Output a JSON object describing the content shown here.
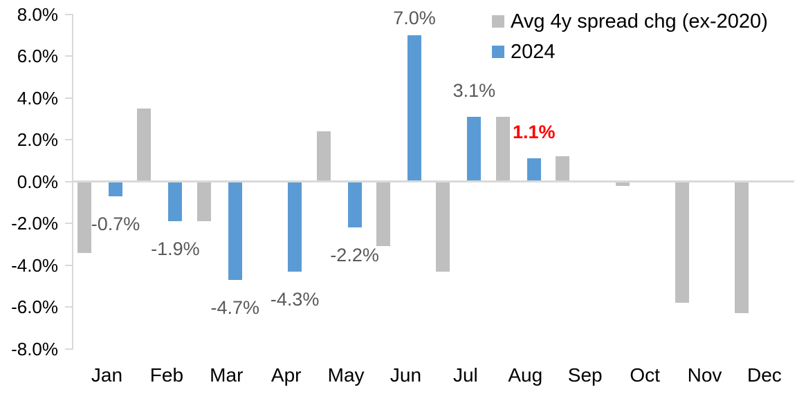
{
  "chart_data": {
    "type": "bar",
    "title": "",
    "xlabel": "",
    "ylabel": "",
    "categories": [
      "Jan",
      "Feb",
      "Mar",
      "Apr",
      "May",
      "Jun",
      "Jul",
      "Aug",
      "Sep",
      "Oct",
      "Nov",
      "Dec"
    ],
    "series": [
      {
        "name": "Avg 4y spread chg (ex-2020)",
        "color": "#BFBFBF",
        "values": [
          -3.4,
          3.5,
          -1.9,
          0.0,
          2.4,
          -3.1,
          -4.3,
          3.1,
          1.2,
          -0.2,
          -5.8,
          -6.3
        ]
      },
      {
        "name": "2024",
        "color": "#5B9BD5",
        "values": [
          -0.7,
          -1.9,
          -4.7,
          -4.3,
          -2.2,
          7.0,
          3.1,
          1.1,
          null,
          null,
          null,
          null
        ]
      }
    ],
    "data_labels": [
      {
        "category": "Jan",
        "text": "-0.7%",
        "color": "#595959",
        "bold": false
      },
      {
        "category": "Feb",
        "text": "-1.9%",
        "color": "#595959",
        "bold": false
      },
      {
        "category": "Mar",
        "text": "-4.7%",
        "color": "#595959",
        "bold": false
      },
      {
        "category": "Apr",
        "text": "-4.3%",
        "color": "#595959",
        "bold": false
      },
      {
        "category": "May",
        "text": "-2.2%",
        "color": "#595959",
        "bold": false
      },
      {
        "category": "Jun",
        "text": "7.0%",
        "color": "#595959",
        "bold": false
      },
      {
        "category": "Jul",
        "text": "3.1%",
        "color": "#595959",
        "bold": false
      },
      {
        "category": "Aug",
        "text": "1.1%",
        "color": "#FF0000",
        "bold": true
      }
    ],
    "y_axis": {
      "min": -8,
      "max": 8,
      "tick_step": 2,
      "tick_labels": [
        "8.0%",
        "6.0%",
        "4.0%",
        "2.0%",
        "0.0%",
        "-2.0%",
        "-4.0%",
        "-6.0%",
        "-8.0%"
      ],
      "tick_values": [
        8,
        6,
        4,
        2,
        0,
        -2,
        -4,
        -6,
        -8
      ]
    },
    "legend": {
      "position": "top-right",
      "entries": [
        {
          "label": "Avg 4y spread chg (ex-2020)",
          "color": "#BFBFBF"
        },
        {
          "label": "2024",
          "color": "#5B9BD5"
        }
      ]
    },
    "grid": false,
    "background_color": "#FFFFFF",
    "axis_color": "#D9D9D9",
    "axis_text_color": "#000000",
    "data_label_color": "#595959",
    "highlight_label_color": "#FF0000"
  }
}
